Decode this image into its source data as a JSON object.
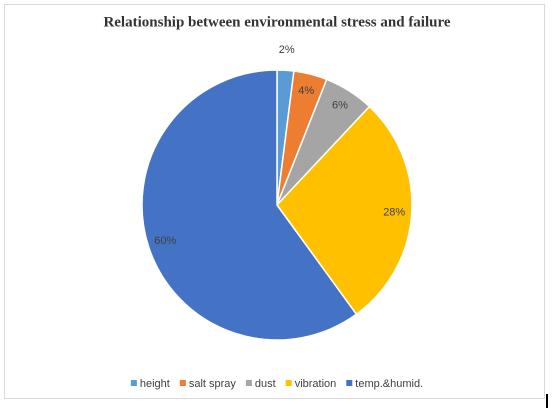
{
  "chart_data": {
    "type": "pie",
    "title": "Relationship between environmental stress and failure",
    "categories": [
      "height",
      "salt spray",
      "dust",
      "vibration",
      "temp.&humid."
    ],
    "values": [
      2,
      4,
      6,
      28,
      60
    ],
    "value_labels": [
      "2%",
      "4%",
      "6%",
      "28%",
      "60%"
    ],
    "colors": [
      "#5b9bd5",
      "#ed7d31",
      "#a5a5a5",
      "#ffc000",
      "#4472c4"
    ],
    "legend": "bottom"
  }
}
